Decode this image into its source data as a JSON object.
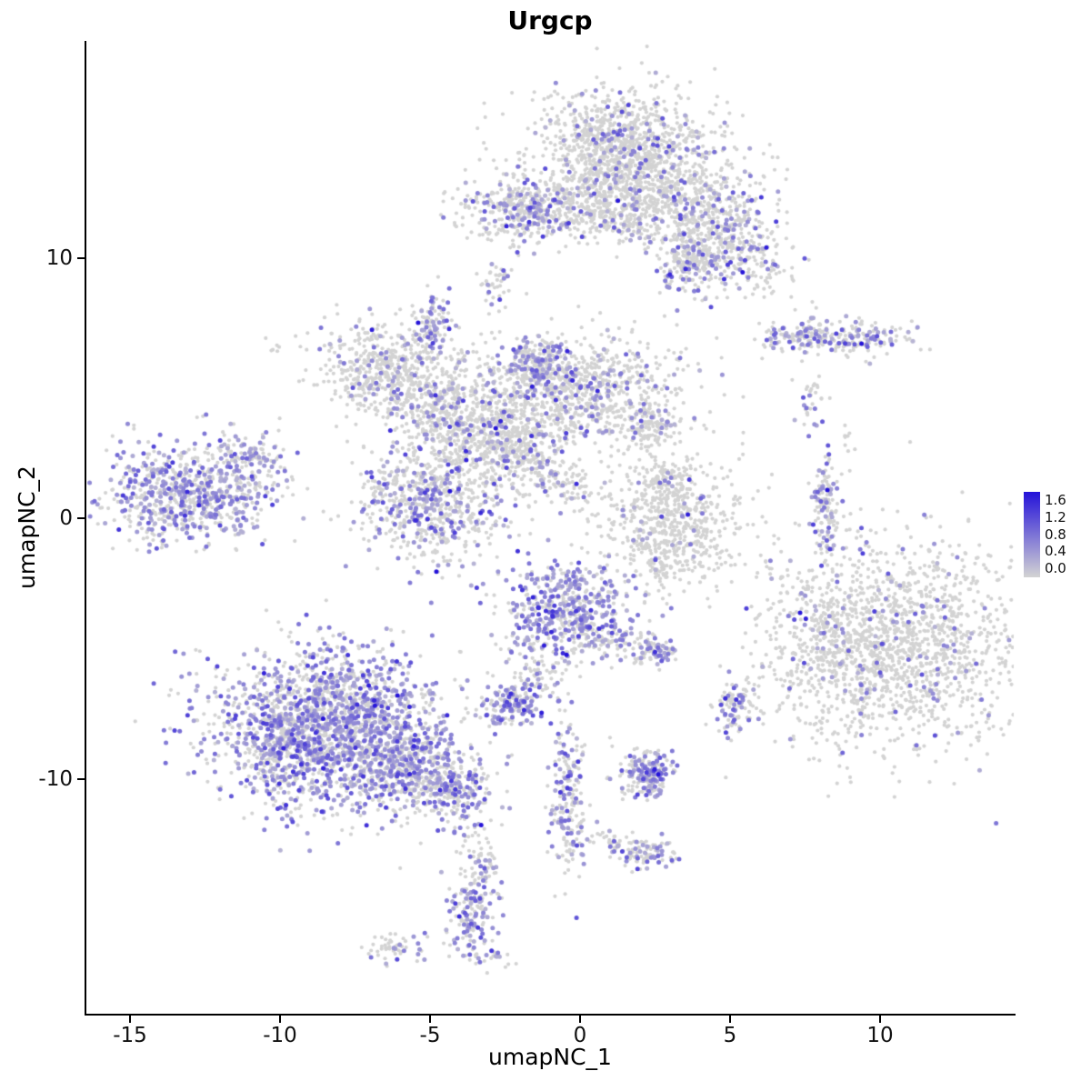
{
  "title": "Urgcp",
  "axes": {
    "x_label": "umapNC_1",
    "y_label": "umapNC_2",
    "x_ticks": [
      -15,
      -10,
      -5,
      0,
      5,
      10
    ],
    "y_ticks": [
      10,
      0,
      -10
    ]
  },
  "legend": {
    "ticks": [
      "1.6",
      "1.2",
      "0.8",
      "0.4",
      "0.0"
    ],
    "low_color": "#D3D3D3",
    "high_color": "#2412D9"
  },
  "chart_data": {
    "type": "scatter",
    "title": "Urgcp",
    "xlabel": "umapNC_1",
    "ylabel": "umapNC_2",
    "xlim": [
      -16.5,
      14.5
    ],
    "ylim": [
      -19.0,
      18.3
    ],
    "grid": false,
    "legend_position": "right",
    "color_scale": {
      "min": 0.0,
      "max": 1.6,
      "low": "#D3D3D3",
      "high": "#2412D9"
    },
    "color_meaning": "Urgcp expression level per cell",
    "background_point_color": "#D3D3D3",
    "seed": 42,
    "clusters": [
      {
        "x": 1.5,
        "y": 14.3,
        "sx": 1.5,
        "sy": 1.1,
        "n": 900,
        "f": 0.1
      },
      {
        "x": 2.2,
        "y": 12.6,
        "sx": 2.0,
        "sy": 0.9,
        "n": 750,
        "f": 0.12
      },
      {
        "x": 4.6,
        "y": 10.6,
        "sx": 1.2,
        "sy": 0.8,
        "n": 500,
        "f": 0.22,
        "rot": -30
      },
      {
        "x": 0.3,
        "y": 11.6,
        "sx": 1.2,
        "sy": 0.5,
        "n": 250,
        "f": 0.1
      },
      {
        "x": -2.2,
        "y": 11.9,
        "sx": 0.9,
        "sy": 0.6,
        "n": 280,
        "f": 0.28
      },
      {
        "x": -2.8,
        "y": 8.9,
        "sx": 0.25,
        "sy": 0.5,
        "n": 40,
        "f": 0.15
      },
      {
        "x": 3.6,
        "y": 9.6,
        "sx": 0.5,
        "sy": 0.5,
        "n": 120,
        "f": 0.2
      },
      {
        "x": -6.5,
        "y": 5.7,
        "sx": 1.1,
        "sy": 0.9,
        "n": 500,
        "f": 0.12
      },
      {
        "x": -4.9,
        "y": 7.4,
        "sx": 0.4,
        "sy": 0.6,
        "n": 110,
        "f": 0.35
      },
      {
        "x": -4.6,
        "y": 4.3,
        "sx": 0.9,
        "sy": 0.9,
        "n": 350,
        "f": 0.12
      },
      {
        "x": -0.2,
        "y": 4.9,
        "sx": 1.8,
        "sy": 1.1,
        "n": 950,
        "f": 0.15
      },
      {
        "x": -1.5,
        "y": 5.9,
        "sx": 0.5,
        "sy": 0.5,
        "n": 150,
        "f": 0.5
      },
      {
        "x": -5.0,
        "y": 0.6,
        "sx": 1.2,
        "sy": 1.1,
        "n": 650,
        "f": 0.28
      },
      {
        "x": -2.8,
        "y": 2.8,
        "sx": 1.2,
        "sy": 1.1,
        "n": 500,
        "f": 0.15
      },
      {
        "x": -1.2,
        "y": 1.8,
        "sx": 1.4,
        "sy": 0.4,
        "n": 220,
        "f": 0.12,
        "rot": -40
      },
      {
        "x": 2.4,
        "y": 3.4,
        "sx": 0.5,
        "sy": 0.4,
        "n": 100,
        "f": 0.1
      },
      {
        "x": -13.1,
        "y": 1.0,
        "sx": 1.5,
        "sy": 0.95,
        "n": 750,
        "f": 0.45
      },
      {
        "x": -11.0,
        "y": 2.4,
        "sx": 0.5,
        "sy": 0.35,
        "n": 80,
        "f": 0.3
      },
      {
        "x": 7.3,
        "y": 7.0,
        "sx": 0.8,
        "sy": 0.3,
        "n": 130,
        "f": 0.3
      },
      {
        "x": 9.4,
        "y": 6.9,
        "sx": 0.9,
        "sy": 0.35,
        "n": 140,
        "f": 0.35
      },
      {
        "x": 7.7,
        "y": 4.6,
        "sx": 0.3,
        "sy": 0.4,
        "n": 30,
        "f": 0.2
      },
      {
        "x": 8.2,
        "y": 0.2,
        "sx": 0.22,
        "sy": 1.1,
        "n": 140,
        "f": 0.4
      },
      {
        "x": 3.2,
        "y": -0.4,
        "sx": 1.1,
        "sy": 1.2,
        "n": 600,
        "f": 0.05
      },
      {
        "x": 2.9,
        "y": 1.5,
        "sx": 0.4,
        "sy": 0.5,
        "n": 100,
        "f": 0.08
      },
      {
        "x": 10.5,
        "y": -4.9,
        "sx": 2.2,
        "sy": 2.0,
        "n": 1700,
        "f": 0.07
      },
      {
        "x": 8.3,
        "y": -4.3,
        "sx": 0.5,
        "sy": 0.8,
        "n": 90,
        "f": 0.1
      },
      {
        "x": -0.4,
        "y": -3.6,
        "sx": 1.05,
        "sy": 1.0,
        "n": 500,
        "f": 0.55
      },
      {
        "x": 1.0,
        "y": -4.6,
        "sx": 0.8,
        "sy": 0.4,
        "n": 110,
        "f": 0.2,
        "rot": -20
      },
      {
        "x": 2.5,
        "y": -5.1,
        "sx": 0.35,
        "sy": 0.3,
        "n": 70,
        "f": 0.45
      },
      {
        "x": -2.3,
        "y": -7.2,
        "sx": 0.6,
        "sy": 0.45,
        "n": 170,
        "f": 0.5
      },
      {
        "x": -1.4,
        "y": -5.9,
        "sx": 0.5,
        "sy": 0.5,
        "n": 70,
        "f": 0.25,
        "rot": 45
      },
      {
        "x": 5.1,
        "y": -7.3,
        "sx": 0.3,
        "sy": 0.45,
        "n": 90,
        "f": 0.3
      },
      {
        "x": -8.3,
        "y": -7.9,
        "sx": 1.9,
        "sy": 1.5,
        "n": 1900,
        "f": 0.5
      },
      {
        "x": -5.6,
        "y": -9.7,
        "sx": 1.1,
        "sy": 0.8,
        "n": 450,
        "f": 0.4,
        "rot": -25
      },
      {
        "x": -4.0,
        "y": -10.6,
        "sx": 0.5,
        "sy": 0.5,
        "n": 130,
        "f": 0.35
      },
      {
        "x": -10.1,
        "y": -8.9,
        "sx": 0.5,
        "sy": 0.9,
        "n": 150,
        "f": 0.45
      },
      {
        "x": -0.4,
        "y": -10.8,
        "sx": 0.3,
        "sy": 1.5,
        "n": 190,
        "f": 0.4
      },
      {
        "x": 2.2,
        "y": -9.8,
        "sx": 0.5,
        "sy": 0.45,
        "n": 190,
        "f": 0.45
      },
      {
        "x": 2.3,
        "y": -12.9,
        "sx": 0.5,
        "sy": 0.3,
        "n": 80,
        "f": 0.35
      },
      {
        "x": 1.1,
        "y": -12.4,
        "sx": 0.7,
        "sy": 0.25,
        "n": 50,
        "f": 0.2,
        "rot": -15
      },
      {
        "x": -3.6,
        "y": -15.2,
        "sx": 0.4,
        "sy": 1.0,
        "n": 170,
        "f": 0.5
      },
      {
        "x": -3.2,
        "y": -13.3,
        "sx": 0.3,
        "sy": 0.6,
        "n": 40,
        "f": 0.2
      },
      {
        "x": -3.7,
        "y": -12.3,
        "sx": 0.25,
        "sy": 0.6,
        "n": 25,
        "f": 0.1
      },
      {
        "x": -6.2,
        "y": -16.5,
        "sx": 0.5,
        "sy": 0.25,
        "n": 55,
        "f": 0.3
      },
      {
        "x": -2.6,
        "y": -16.9,
        "sx": 0.3,
        "sy": 0.2,
        "n": 10,
        "f": 0.2
      },
      {
        "x": -10.2,
        "y": 6.5,
        "sx": 0.15,
        "sy": 0.15,
        "n": 6,
        "f": 0
      },
      {
        "x": 6.2,
        "y": 8.8,
        "sx": 0.2,
        "sy": 0.2,
        "n": 6,
        "f": 0
      },
      {
        "x": 8.9,
        "y": 3.1,
        "sx": 0.15,
        "sy": 0.3,
        "n": 8,
        "f": 0
      },
      {
        "x": 2.6,
        "y": -1.9,
        "sx": 0.3,
        "sy": 0.3,
        "n": 20,
        "f": 0.1
      }
    ]
  }
}
